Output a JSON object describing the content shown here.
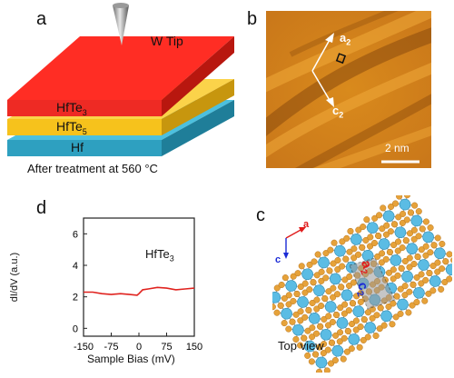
{
  "panels": {
    "a": {
      "letter": "a",
      "tip_label": "W Tip",
      "layers": [
        {
          "name": "HfTe",
          "sub": "3",
          "color": "#ee2a24"
        },
        {
          "name": "HfTe",
          "sub": "5",
          "color": "#f6c21c"
        },
        {
          "name": "Hf",
          "sub": "",
          "color": "#2ea0c0"
        }
      ],
      "caption": "After treatment at 560 °C"
    },
    "b": {
      "letter": "b",
      "vec1": "a",
      "vec1_sub": "2",
      "vec2": "c",
      "vec2_sub": "2",
      "scale_label": "2 nm"
    },
    "c": {
      "letter": "c",
      "axis_a": "a",
      "axis_c": "c",
      "cell_a": "a",
      "cell_a_sub": "2",
      "cell_c": "c",
      "cell_c_sub": "2",
      "caption": "Top view"
    },
    "d": {
      "letter": "d",
      "legend": "HfTe",
      "legend_sub": "3"
    }
  },
  "colors": {
    "hfte3": "#ee2a24",
    "hfte5": "#f6c21c",
    "hf": "#2ea0c0",
    "curve": "#e0231f",
    "te_atom": "#e6a23a",
    "hf_atom": "#5bbce4"
  },
  "chart_data": {
    "type": "line",
    "title": "",
    "xlabel": "Sample Bias (mV)",
    "ylabel": "dI/dV (a.u.)",
    "xlim": [
      -150,
      150
    ],
    "ylim": [
      -0.5,
      7
    ],
    "xticks": [
      -150,
      -75,
      0,
      75,
      150
    ],
    "yticks": [
      0,
      2,
      4,
      6
    ],
    "series": [
      {
        "name": "HfTe3",
        "x": [
          -150,
          -125,
          -100,
          -75,
          -50,
          -25,
          -5,
          0,
          10,
          25,
          50,
          75,
          100,
          125,
          150
        ],
        "y": [
          2.3,
          2.3,
          2.2,
          2.15,
          2.2,
          2.15,
          2.1,
          2.2,
          2.45,
          2.5,
          2.6,
          2.55,
          2.45,
          2.5,
          2.55
        ]
      }
    ]
  }
}
